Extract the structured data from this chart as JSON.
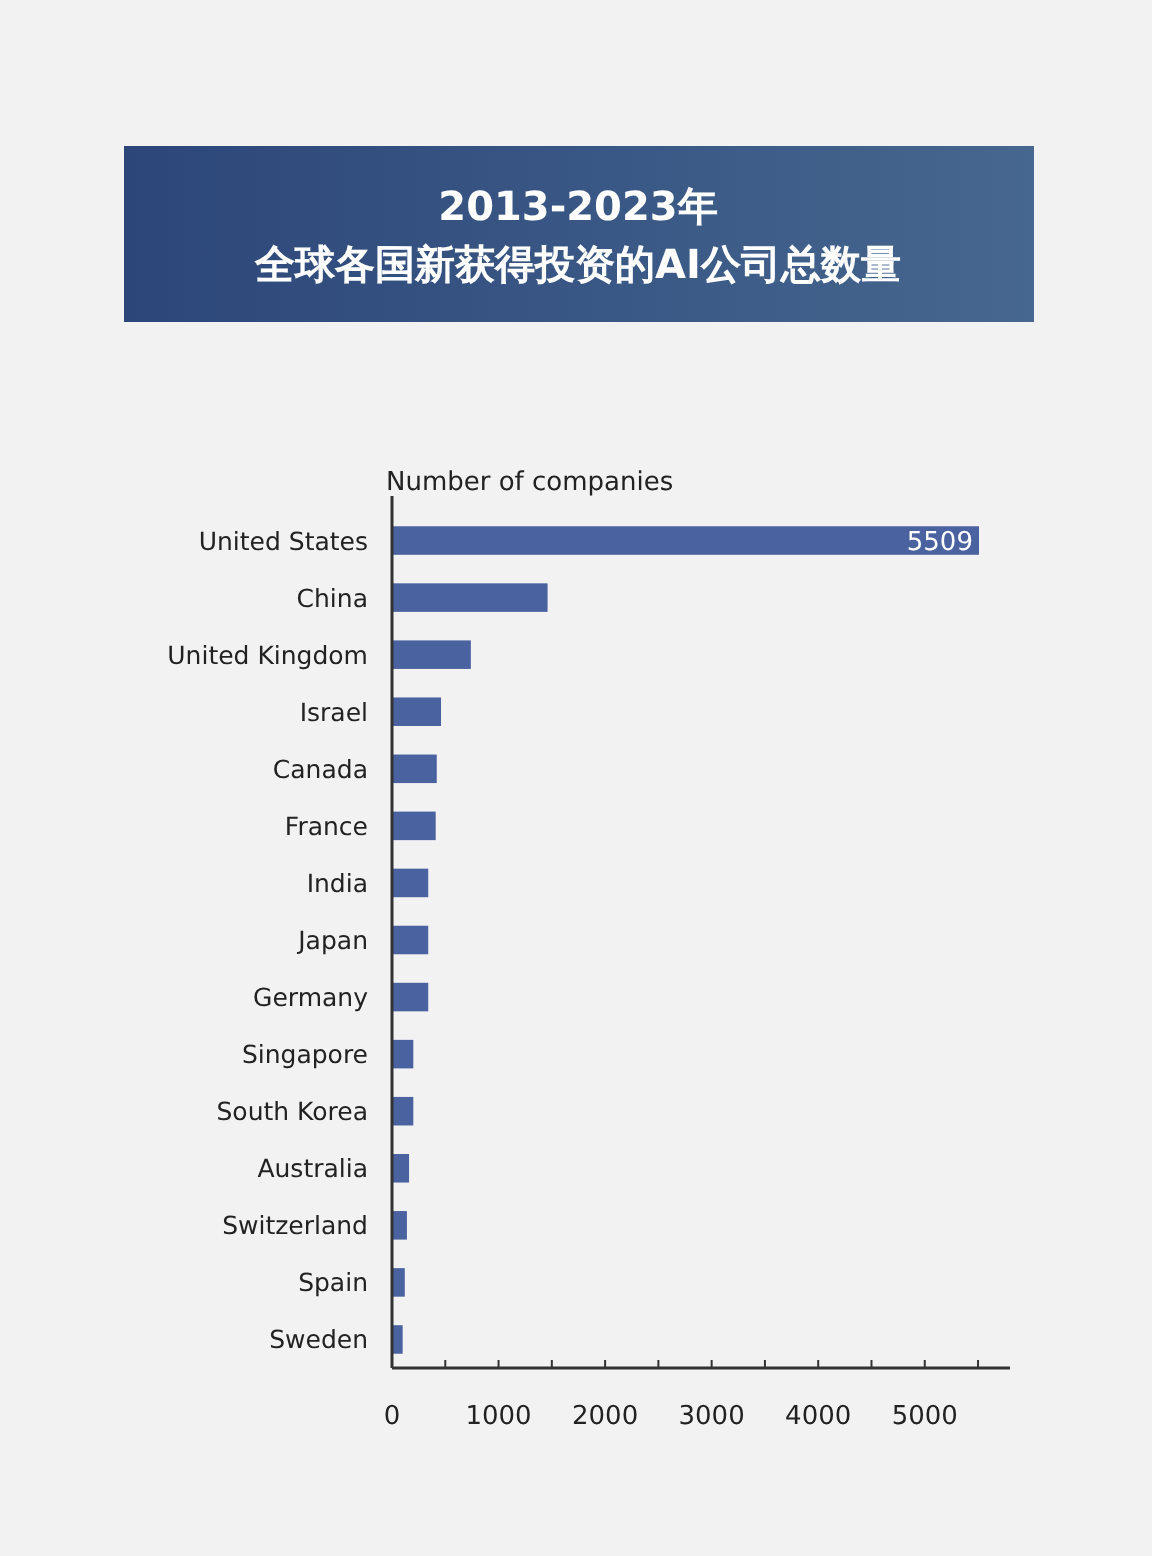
{
  "chart_data": {
    "type": "bar",
    "orientation": "horizontal",
    "title": "2013-2023年",
    "subtitle": "全球各国新获得投资的AI公司总数量",
    "xlabel": "Number of companies",
    "categories": [
      "United States",
      "China",
      "United Kingdom",
      "Israel",
      "Canada",
      "France",
      "India",
      "Japan",
      "Germany",
      "Singapore",
      "South Korea",
      "Australia",
      "Switzerland",
      "Spain",
      "Sweden"
    ],
    "values": [
      5509,
      1460,
      740,
      460,
      420,
      410,
      340,
      340,
      340,
      200,
      200,
      160,
      140,
      120,
      100
    ],
    "value_labels": [
      "5509",
      null,
      null,
      null,
      null,
      null,
      null,
      null,
      null,
      null,
      null,
      null,
      null,
      null,
      null
    ],
    "color": "#4a62a0",
    "xlim": [
      0,
      5800
    ],
    "xticks": [
      0,
      {
        "value": 500,
        "label": null
      },
      1000,
      {
        "value": 1500,
        "label": null
      },
      2000,
      {
        "value": 2500,
        "label": null
      },
      3000,
      {
        "value": 3500,
        "label": null
      },
      4000,
      {
        "value": 4500,
        "label": null
      },
      5000,
      {
        "value": 5500,
        "label": null
      }
    ],
    "grid": false
  }
}
